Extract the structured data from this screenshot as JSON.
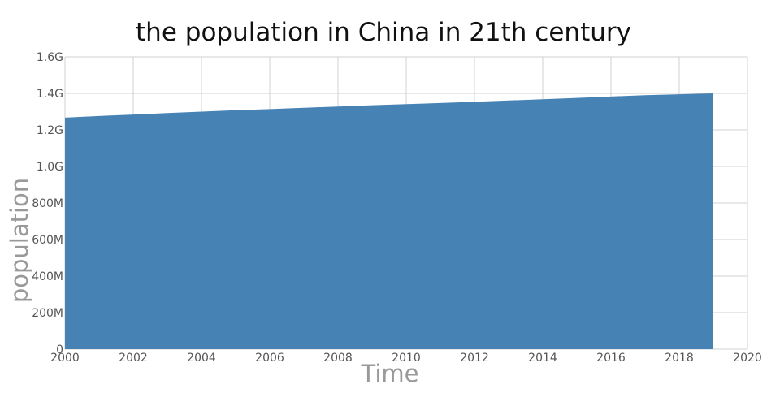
{
  "chart_data": {
    "type": "area",
    "title": "the population in China in 21th century",
    "xlabel": "Time",
    "ylabel": "population",
    "xlim": [
      2000,
      2020
    ],
    "ylim": [
      0,
      1600000000
    ],
    "x_ticks": [
      2000,
      2002,
      2004,
      2006,
      2008,
      2010,
      2012,
      2014,
      2016,
      2018,
      2020
    ],
    "x_tick_labels": [
      "2000",
      "2002",
      "2004",
      "2006",
      "2008",
      "2010",
      "2012",
      "2014",
      "2016",
      "2018",
      "2020"
    ],
    "y_ticks": [
      0,
      200000000,
      400000000,
      600000000,
      800000000,
      1000000000,
      1200000000,
      1400000000,
      1600000000
    ],
    "y_tick_labels": [
      "0",
      "200M",
      "400M",
      "600M",
      "800M",
      "1.0G",
      "1.2G",
      "1.4G",
      "1.6G"
    ],
    "grid": true,
    "colors": {
      "fill": "#4682b4"
    },
    "series": [
      {
        "x": [
          2000,
          2001,
          2002,
          2003,
          2004,
          2005,
          2006,
          2007,
          2008,
          2009,
          2010,
          2011,
          2012,
          2013,
          2014,
          2015,
          2016,
          2017,
          2018,
          2019
        ],
        "values": [
          1267000000,
          1276000000,
          1284000000,
          1292000000,
          1300000000,
          1308000000,
          1314000000,
          1321000000,
          1328000000,
          1335000000,
          1341000000,
          1347000000,
          1354000000,
          1361000000,
          1368000000,
          1375000000,
          1383000000,
          1390000000,
          1395000000,
          1400000000
        ]
      }
    ]
  }
}
